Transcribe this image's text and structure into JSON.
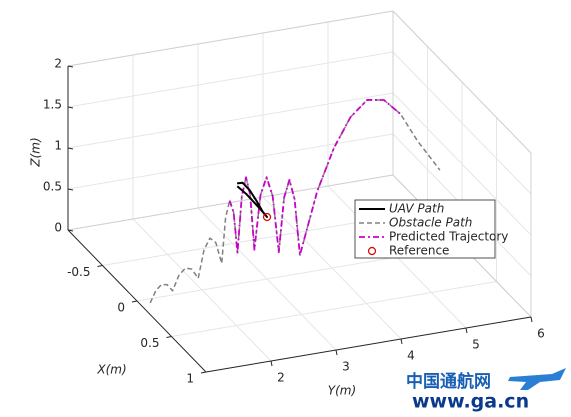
{
  "chart_data": {
    "type": "line3d",
    "xlabel": "X(m)",
    "ylabel": "Y(m)",
    "zlabel": "Z(m)",
    "xlim": [
      -1,
      1
    ],
    "ylim": [
      1,
      6
    ],
    "zlim": [
      0,
      2
    ],
    "xticks": [
      -0.5,
      0,
      0.5,
      1
    ],
    "yticks": [
      2,
      3,
      4,
      5,
      6
    ],
    "zticks": [
      0,
      0.5,
      1,
      1.5,
      2
    ],
    "grid": true,
    "legend": "east",
    "series": [
      {
        "name": "UAV Path",
        "color": "#000000",
        "style": "solid",
        "x": [
          -0.424,
          -0.4,
          -0.36,
          -0.32,
          -0.28,
          -0.254,
          -0.3,
          -0.38,
          -0.43
        ],
        "y": [
          2.99,
          3.05,
          3.12,
          3.18,
          3.23,
          3.27,
          3.2,
          3.08,
          3.0
        ],
        "z": [
          0.8,
          0.82,
          0.75,
          0.65,
          0.55,
          0.5,
          0.58,
          0.7,
          0.76
        ]
      },
      {
        "name": "Obstacle Path",
        "color": "#808080",
        "style": "dashed",
        "x": [
          0.05,
          0.025,
          0,
          -0.025,
          -0.05,
          -0.075,
          -0.1,
          -0.125,
          -0.15,
          -0.1825,
          -0.215,
          -0.2475,
          -0.28,
          -0.305,
          -0.33,
          -0.355,
          -0.38,
          -0.38,
          -0.38,
          -0.38,
          -0.38,
          -0.36,
          -0.34,
          -0.32,
          -0.3,
          -0.28,
          -0.26,
          -0.24,
          -0.22,
          -0.214,
          -0.208,
          -0.202,
          -0.196,
          -0.19,
          -0.184,
          -0.178,
          -0.17
        ],
        "y": [
          1.15,
          1.2625,
          1.375,
          1.4875,
          1.6,
          1.725,
          1.85,
          1.975,
          2.1,
          2.225,
          2.35,
          2.475,
          2.6,
          2.6875,
          2.775,
          2.8625,
          2.95,
          3.015,
          3.08,
          3.145,
          3.21,
          3.2825,
          3.355,
          3.4275,
          3.5,
          3.56,
          3.62,
          3.68,
          3.74,
          4.0,
          4.25,
          4.5,
          4.75,
          5.0,
          5.25,
          5.5,
          5.84
        ],
        "z": [
          0,
          0.1125,
          0.15,
          0.1125,
          0,
          0.15,
          0.2,
          0.15,
          0,
          0.3,
          0.4,
          0.3,
          0,
          0.525,
          0.7,
          0.525,
          0,
          0.675,
          0.9,
          0.675,
          0,
          0.675,
          0.9,
          0.675,
          0,
          0.675,
          0.9,
          0.675,
          0,
          0.75,
          1.25,
          1.6,
          1.78,
          1.75,
          1.55,
          1.2,
          0.8
        ]
      },
      {
        "name": "Predicted Trajectory",
        "color": "#cc00cc",
        "style": "dashdot",
        "x": [
          -0.33,
          -0.355,
          -0.38,
          -0.38,
          -0.38,
          -0.38,
          -0.38,
          -0.36,
          -0.34,
          -0.32,
          -0.3,
          -0.28,
          -0.26,
          -0.24,
          -0.22,
          -0.214,
          -0.208,
          -0.202,
          -0.196,
          -0.19,
          -0.184
        ],
        "y": [
          2.775,
          2.8625,
          2.95,
          3.015,
          3.08,
          3.145,
          3.21,
          3.2825,
          3.355,
          3.4275,
          3.5,
          3.56,
          3.62,
          3.68,
          3.74,
          4.0,
          4.25,
          4.5,
          4.75,
          5.0,
          5.25
        ],
        "z": [
          0.7,
          0.525,
          0,
          0.675,
          0.9,
          0.675,
          0,
          0.675,
          0.9,
          0.675,
          0,
          0.675,
          0.9,
          0.675,
          0,
          0.75,
          1.25,
          1.6,
          1.78,
          1.75,
          1.55
        ]
      },
      {
        "name": "Reference",
        "color": "#e00000",
        "style": "marker",
        "x": [
          -0.254
        ],
        "y": [
          3.27
        ],
        "z": [
          0.5
        ]
      }
    ]
  },
  "watermark": {
    "name": "中国通航网",
    "url": "www.ga.cn"
  }
}
